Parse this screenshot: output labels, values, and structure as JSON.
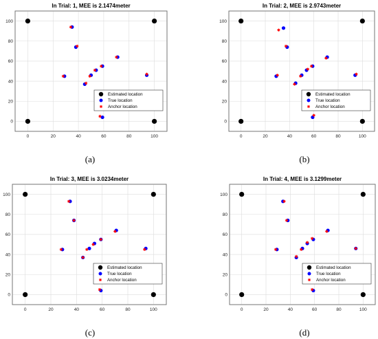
{
  "figure": {
    "panel_captions": [
      "(a)",
      "(b)",
      "(c)",
      "(d)"
    ]
  },
  "legend": {
    "estimated": "Estimated location",
    "true": "True location",
    "anchor": "Anchor location"
  },
  "colors": {
    "anchor_marker": "#000000",
    "true_marker": "#0000ff",
    "estimated_marker": "#ff0000"
  },
  "chart_data": [
    {
      "type": "scatter",
      "title": "In Trial: 1, MEE is 2.1474meter",
      "xlim": [
        -10,
        110
      ],
      "ylim": [
        -10,
        110
      ],
      "xticks": [
        0,
        20,
        40,
        60,
        80,
        100
      ],
      "yticks": [
        0,
        20,
        40,
        60,
        80,
        100
      ],
      "grid": true,
      "legend_position": "lower-right",
      "series": [
        {
          "name": "Estimated location",
          "marker": "filled-circle",
          "color": "#000000",
          "points": [
            [
              0,
              0
            ],
            [
              0,
              100
            ],
            [
              100,
              100
            ],
            [
              100,
              0
            ]
          ]
        },
        {
          "name": "True location",
          "marker": "filled-circle",
          "color": "#0000ff",
          "points": [
            [
              35,
              94
            ],
            [
              38,
              74
            ],
            [
              29,
              45
            ],
            [
              45,
              37
            ],
            [
              50,
              46
            ],
            [
              54,
              51
            ],
            [
              59,
              55
            ],
            [
              71,
              64
            ],
            [
              59,
              4
            ],
            [
              94,
              46
            ]
          ]
        },
        {
          "name": "Anchor location",
          "marker": "star",
          "color": "#ff0000",
          "points": [
            [
              34,
              94
            ],
            [
              39,
              75
            ],
            [
              28,
              45
            ],
            [
              46,
              38
            ],
            [
              49,
              45
            ],
            [
              53,
              51
            ],
            [
              58,
              55
            ],
            [
              70,
              64
            ],
            [
              57,
              5
            ],
            [
              94,
              47
            ]
          ]
        }
      ]
    },
    {
      "type": "scatter",
      "title": "In Trial: 2, MEE is 2.9743meter",
      "xlim": [
        -10,
        110
      ],
      "ylim": [
        -10,
        110
      ],
      "xticks": [
        0,
        20,
        40,
        60,
        80,
        100
      ],
      "yticks": [
        0,
        20,
        40,
        60,
        80,
        100
      ],
      "grid": true,
      "legend_position": "lower-right",
      "series": [
        {
          "name": "Estimated location",
          "marker": "filled-circle",
          "color": "#000000",
          "points": [
            [
              0,
              0
            ],
            [
              0,
              100
            ],
            [
              100,
              100
            ],
            [
              100,
              0
            ]
          ]
        },
        {
          "name": "True location",
          "marker": "filled-circle",
          "color": "#0000ff",
          "points": [
            [
              35,
              93
            ],
            [
              38,
              74
            ],
            [
              29,
              45
            ],
            [
              45,
              38
            ],
            [
              50,
              46
            ],
            [
              54,
              51
            ],
            [
              59,
              55
            ],
            [
              71,
              64
            ],
            [
              59,
              4
            ],
            [
              94,
              46
            ]
          ]
        },
        {
          "name": "Anchor location",
          "marker": "star",
          "color": "#ff0000",
          "points": [
            [
              31,
              91
            ],
            [
              37,
              75
            ],
            [
              30,
              46
            ],
            [
              44,
              37
            ],
            [
              49,
              45
            ],
            [
              55,
              52
            ],
            [
              58,
              55
            ],
            [
              70,
              63
            ],
            [
              60,
              6
            ],
            [
              95,
              47
            ]
          ]
        }
      ]
    },
    {
      "type": "scatter",
      "title": "In Trial: 3, MEE is 3.0234meter",
      "xlim": [
        -10,
        110
      ],
      "ylim": [
        -10,
        110
      ],
      "xticks": [
        0,
        20,
        40,
        60,
        80,
        100
      ],
      "yticks": [
        0,
        20,
        40,
        60,
        80,
        100
      ],
      "grid": true,
      "legend_position": "lower-right",
      "series": [
        {
          "name": "Estimated location",
          "marker": "filled-circle",
          "color": "#000000",
          "points": [
            [
              0,
              0
            ],
            [
              0,
              100
            ],
            [
              100,
              100
            ],
            [
              100,
              0
            ]
          ]
        },
        {
          "name": "True location",
          "marker": "filled-circle",
          "color": "#0000ff",
          "points": [
            [
              35,
              93
            ],
            [
              38,
              74
            ],
            [
              29,
              45
            ],
            [
              45,
              37
            ],
            [
              50,
              46
            ],
            [
              54,
              51
            ],
            [
              59,
              55
            ],
            [
              71,
              64
            ],
            [
              59,
              4
            ],
            [
              94,
              46
            ]
          ]
        },
        {
          "name": "Anchor location",
          "marker": "star",
          "color": "#ff0000",
          "points": [
            [
              34,
              93
            ],
            [
              38,
              74
            ],
            [
              28,
              45
            ],
            [
              45,
              37
            ],
            [
              48,
              45
            ],
            [
              53,
              50
            ],
            [
              59,
              55
            ],
            [
              70,
              63
            ],
            [
              58,
              5
            ],
            [
              93,
              45
            ]
          ]
        }
      ]
    },
    {
      "type": "scatter",
      "title": "In Trial: 4, MEE is 3.1299meter",
      "xlim": [
        -10,
        110
      ],
      "ylim": [
        -10,
        110
      ],
      "xticks": [
        0,
        20,
        40,
        60,
        80,
        100
      ],
      "yticks": [
        0,
        20,
        40,
        60,
        80,
        100
      ],
      "grid": true,
      "legend_position": "lower-right",
      "series": [
        {
          "name": "Estimated location",
          "marker": "filled-circle",
          "color": "#000000",
          "points": [
            [
              0,
              0
            ],
            [
              0,
              100
            ],
            [
              100,
              100
            ],
            [
              100,
              0
            ]
          ]
        },
        {
          "name": "True location",
          "marker": "filled-circle",
          "color": "#0000ff",
          "points": [
            [
              34,
              93
            ],
            [
              38,
              74
            ],
            [
              29,
              45
            ],
            [
              45,
              37
            ],
            [
              50,
              46
            ],
            [
              54,
              51
            ],
            [
              59,
              55
            ],
            [
              71,
              64
            ],
            [
              59,
              4
            ],
            [
              94,
              46
            ]
          ]
        },
        {
          "name": "Anchor location",
          "marker": "star",
          "color": "#ff0000",
          "points": [
            [
              35,
              93
            ],
            [
              37,
              74
            ],
            [
              28,
              45
            ],
            [
              45,
              38
            ],
            [
              49,
              45
            ],
            [
              54,
              52
            ],
            [
              58,
              56
            ],
            [
              70,
              63
            ],
            [
              58,
              5
            ],
            [
              94,
              46
            ]
          ]
        }
      ]
    }
  ]
}
